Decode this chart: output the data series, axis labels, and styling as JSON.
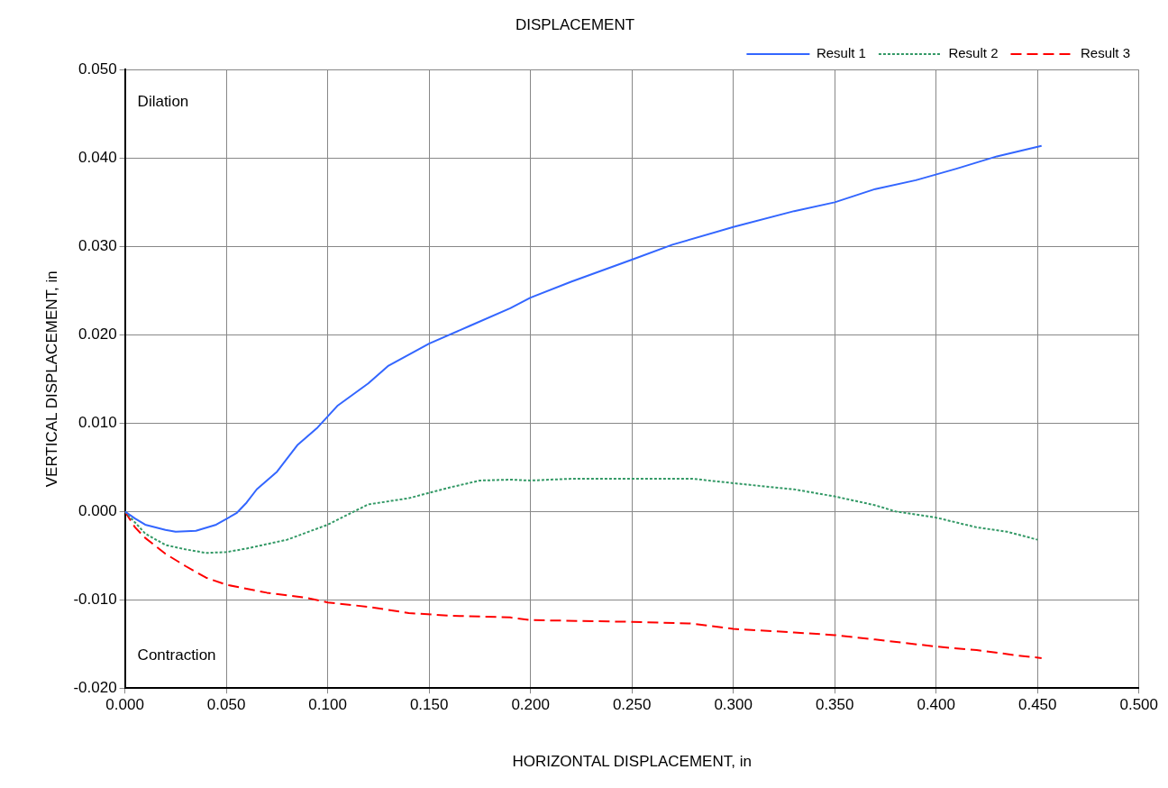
{
  "chart_data": {
    "type": "line",
    "title": "DISPLACEMENT",
    "xlabel": "HORIZONTAL DISPLACEMENT, in",
    "ylabel": "VERTICAL DISPLACEMENT, in",
    "annotations": [
      "Dilation",
      "Contraction"
    ],
    "xlim": [
      0,
      0.5
    ],
    "xticks": [
      {
        "value": 0,
        "label": "0.000"
      },
      {
        "value": 0.05,
        "label": "0.050"
      },
      {
        "value": 0.1,
        "label": "0.100"
      },
      {
        "value": 0.15,
        "label": "0.150"
      },
      {
        "value": 0.2,
        "label": "0.200"
      },
      {
        "value": 0.25,
        "label": "0.250"
      },
      {
        "value": 0.3,
        "label": "0.300"
      },
      {
        "value": 0.35,
        "label": "0.350"
      },
      {
        "value": 0.4,
        "label": "0.400"
      },
      {
        "value": 0.45,
        "label": "0.450"
      },
      {
        "value": 0.5,
        "label": "0.500"
      }
    ],
    "ylim": [
      -0.02,
      0.05
    ],
    "yticks": [
      {
        "value": -0.02,
        "label": "-0.020"
      },
      {
        "value": -0.01,
        "label": "-0.010"
      },
      {
        "value": 0,
        "label": "0.000"
      },
      {
        "value": 0.01,
        "label": "0.010"
      },
      {
        "value": 0.02,
        "label": "0.020"
      },
      {
        "value": 0.03,
        "label": "0.030"
      },
      {
        "value": 0.04,
        "label": "0.040"
      },
      {
        "value": 0.05,
        "label": "0.050"
      }
    ],
    "grid": true,
    "legend": "top right",
    "marker": "none",
    "series": [
      {
        "name": "Result 1",
        "color": "#3366ff",
        "line_style": "solid",
        "x": [
          0,
          0.005,
          0.01,
          0.02,
          0.025,
          0.035,
          0.045,
          0.055,
          0.06,
          0.065,
          0.075,
          0.085,
          0.095,
          0.105,
          0.12,
          0.13,
          0.15,
          0.17,
          0.19,
          0.2,
          0.22,
          0.25,
          0.27,
          0.3,
          0.33,
          0.35,
          0.37,
          0.39,
          0.41,
          0.43,
          0.452
        ],
        "values": [
          0,
          -0.0008,
          -0.0015,
          -0.0021,
          -0.0023,
          -0.0022,
          -0.0015,
          -0.0002,
          0.001,
          0.0025,
          0.0045,
          0.0075,
          0.0095,
          0.012,
          0.0145,
          0.0165,
          0.019,
          0.021,
          0.023,
          0.0242,
          0.026,
          0.0285,
          0.0302,
          0.0322,
          0.034,
          0.035,
          0.0365,
          0.0375,
          0.0388,
          0.0402,
          0.0414
        ]
      },
      {
        "name": "Result 2",
        "color": "#339966",
        "line_style": "dotted",
        "x": [
          0,
          0.01,
          0.02,
          0.03,
          0.04,
          0.05,
          0.06,
          0.08,
          0.1,
          0.12,
          0.14,
          0.16,
          0.175,
          0.19,
          0.2,
          0.22,
          0.28,
          0.3,
          0.33,
          0.35,
          0.37,
          0.38,
          0.4,
          0.42,
          0.435,
          0.45
        ],
        "values": [
          0,
          -0.0025,
          -0.0038,
          -0.0043,
          -0.0047,
          -0.0046,
          -0.0042,
          -0.0032,
          -0.0015,
          0.0008,
          0.0015,
          0.0027,
          0.0035,
          0.0036,
          0.0035,
          0.0037,
          0.0037,
          0.0032,
          0.0025,
          0.0017,
          0.0007,
          0,
          -0.0007,
          -0.0018,
          -0.0023,
          -0.0032
        ]
      },
      {
        "name": "Result 3",
        "color": "#ff0000",
        "line_style": "dashed",
        "x": [
          0,
          0.005,
          0.01,
          0.02,
          0.03,
          0.04,
          0.05,
          0.07,
          0.09,
          0.1,
          0.12,
          0.14,
          0.16,
          0.19,
          0.2,
          0.25,
          0.28,
          0.3,
          0.33,
          0.35,
          0.37,
          0.4,
          0.42,
          0.44,
          0.452
        ],
        "values": [
          0,
          -0.0018,
          -0.003,
          -0.0048,
          -0.0062,
          -0.0075,
          -0.0083,
          -0.0092,
          -0.0098,
          -0.0103,
          -0.0108,
          -0.0115,
          -0.0118,
          -0.012,
          -0.0123,
          -0.0125,
          -0.0127,
          -0.0133,
          -0.0137,
          -0.014,
          -0.0145,
          -0.0153,
          -0.0157,
          -0.0163,
          -0.0166
        ]
      }
    ]
  }
}
